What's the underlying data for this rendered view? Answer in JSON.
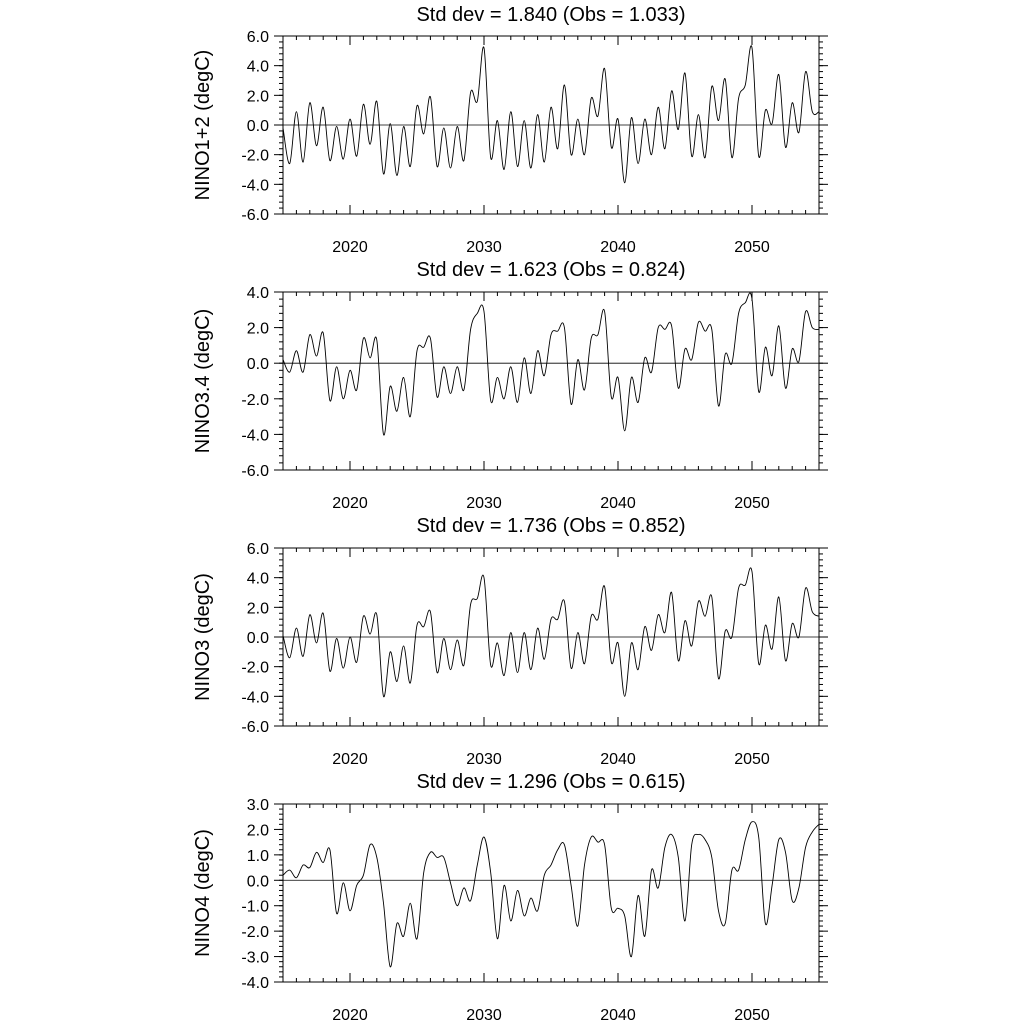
{
  "chart_data": [
    {
      "type": "line",
      "title": "Std dev = 1.840 (Obs = 1.033)",
      "xlabel": "",
      "ylabel": "NINO1+2 (degC)",
      "xlim": [
        2015,
        2055
      ],
      "ylim": [
        -6,
        6
      ],
      "xticks": [
        2020,
        2030,
        2040,
        2050
      ],
      "xtick_labels": [
        "2020",
        "2030",
        "2040",
        "2050"
      ],
      "yticks": [
        -6,
        -4,
        -2,
        0,
        2,
        4,
        6
      ],
      "ytick_labels": [
        "-6.0",
        "-4.0",
        "-2.0",
        "0.0",
        "2.0",
        "4.0",
        "6.0"
      ],
      "reference_line": 0,
      "series": [
        {
          "name": "NINO1+2",
          "x": [
            2015.0,
            2015.5,
            2016.0,
            2016.5,
            2017.0,
            2017.5,
            2018.0,
            2018.5,
            2019.0,
            2019.5,
            2020.0,
            2020.5,
            2021.0,
            2021.5,
            2022.0,
            2022.5,
            2023.0,
            2023.5,
            2024.0,
            2024.5,
            2025.0,
            2025.5,
            2026.0,
            2026.5,
            2027.0,
            2027.5,
            2028.0,
            2028.5,
            2029.0,
            2029.5,
            2030.0,
            2030.5,
            2031.0,
            2031.5,
            2032.0,
            2032.5,
            2033.0,
            2033.5,
            2034.0,
            2034.5,
            2035.0,
            2035.5,
            2036.0,
            2036.5,
            2037.0,
            2037.5,
            2038.0,
            2038.5,
            2039.0,
            2039.5,
            2040.0,
            2040.5,
            2041.0,
            2041.5,
            2042.0,
            2042.5,
            2043.0,
            2043.5,
            2044.0,
            2044.5,
            2045.0,
            2045.5,
            2046.0,
            2046.5,
            2047.0,
            2047.5,
            2048.0,
            2048.5,
            2049.0,
            2049.5,
            2050.0,
            2050.5,
            2051.0,
            2051.5,
            2052.0,
            2052.5,
            2053.0,
            2053.5,
            2054.0,
            2054.5,
            2055.0
          ],
          "values": [
            -0.2,
            -2.6,
            0.9,
            -2.5,
            1.5,
            -1.4,
            1.2,
            -2.4,
            -0.1,
            -2.3,
            0.4,
            -2.1,
            1.4,
            -1.3,
            1.6,
            -3.3,
            0.1,
            -3.4,
            -0.1,
            -2.8,
            1.3,
            -0.6,
            1.9,
            -2.8,
            -0.2,
            -2.9,
            -0.1,
            -2.4,
            2.2,
            1.6,
            5.2,
            -2.2,
            0.3,
            -3.0,
            0.9,
            -2.8,
            0.3,
            -2.9,
            0.7,
            -2.5,
            1.2,
            -1.6,
            2.7,
            -2.0,
            0.4,
            -2.0,
            1.8,
            0.6,
            3.8,
            -1.5,
            0.4,
            -3.9,
            0.5,
            -2.6,
            0.4,
            -2.0,
            1.2,
            -1.6,
            2.3,
            -0.3,
            3.5,
            -2.1,
            0.7,
            -2.2,
            2.6,
            0.3,
            3.1,
            -2.2,
            1.8,
            2.7,
            5.2,
            -2.1,
            1.0,
            0.1,
            3.4,
            -1.5,
            1.5,
            -0.5,
            3.6,
            0.9,
            0.9
          ]
        }
      ]
    },
    {
      "type": "line",
      "title": "Std dev = 1.623 (Obs = 0.824)",
      "xlabel": "",
      "ylabel": "NINO3.4 (degC)",
      "xlim": [
        2015,
        2055
      ],
      "ylim": [
        -6,
        4
      ],
      "xticks": [
        2020,
        2030,
        2040,
        2050
      ],
      "xtick_labels": [
        "2020",
        "2030",
        "2040",
        "2050"
      ],
      "yticks": [
        -6,
        -4,
        -2,
        0,
        2,
        4
      ],
      "ytick_labels": [
        "-6.0",
        "-4.0",
        "-2.0",
        "0.0",
        "2.0",
        "4.0"
      ],
      "reference_line": 0,
      "series": [
        {
          "name": "NINO3.4",
          "x": [
            2015.0,
            2015.5,
            2016.0,
            2016.5,
            2017.0,
            2017.5,
            2018.0,
            2018.5,
            2019.0,
            2019.5,
            2020.0,
            2020.5,
            2021.0,
            2021.5,
            2022.0,
            2022.5,
            2023.0,
            2023.5,
            2024.0,
            2024.5,
            2025.0,
            2025.5,
            2026.0,
            2026.5,
            2027.0,
            2027.5,
            2028.0,
            2028.5,
            2029.0,
            2029.5,
            2030.0,
            2030.5,
            2031.0,
            2031.5,
            2032.0,
            2032.5,
            2033.0,
            2033.5,
            2034.0,
            2034.5,
            2035.0,
            2035.5,
            2036.0,
            2036.5,
            2037.0,
            2037.5,
            2038.0,
            2038.5,
            2039.0,
            2039.5,
            2040.0,
            2040.5,
            2041.0,
            2041.5,
            2042.0,
            2042.5,
            2043.0,
            2043.5,
            2044.0,
            2044.5,
            2045.0,
            2045.5,
            2046.0,
            2046.5,
            2047.0,
            2047.5,
            2048.0,
            2048.5,
            2049.0,
            2049.5,
            2050.0,
            2050.5,
            2051.0,
            2051.5,
            2052.0,
            2052.5,
            2053.0,
            2053.5,
            2054.0,
            2054.5,
            2055.0
          ],
          "values": [
            0.2,
            -0.5,
            0.7,
            -0.5,
            1.6,
            0.4,
            1.7,
            -2.1,
            -0.2,
            -2.0,
            -0.4,
            -1.5,
            1.4,
            0.3,
            1.3,
            -4.0,
            -1.3,
            -2.7,
            -0.8,
            -3.0,
            0.7,
            0.9,
            1.4,
            -1.9,
            -0.2,
            -1.7,
            -0.2,
            -1.5,
            1.9,
            2.8,
            2.9,
            -2.1,
            -0.8,
            -2.0,
            -0.2,
            -2.2,
            0.3,
            -1.7,
            0.7,
            -0.7,
            1.6,
            1.8,
            2.0,
            -2.3,
            0.2,
            -1.5,
            1.4,
            1.6,
            2.9,
            -1.9,
            -0.8,
            -3.8,
            -0.8,
            -2.2,
            0.3,
            -0.5,
            2.0,
            1.9,
            2.1,
            -1.4,
            0.8,
            0.2,
            2.3,
            1.8,
            1.9,
            -2.4,
            0.5,
            0.0,
            2.8,
            3.4,
            3.6,
            -1.6,
            0.9,
            -0.7,
            2.1,
            -1.4,
            0.8,
            0.1,
            2.9,
            2.0,
            1.9
          ]
        }
      ]
    },
    {
      "type": "line",
      "title": "Std dev = 1.736 (Obs = 0.852)",
      "xlabel": "",
      "ylabel": "NINO3 (degC)",
      "xlim": [
        2015,
        2055
      ],
      "ylim": [
        -6,
        6
      ],
      "xticks": [
        2020,
        2030,
        2040,
        2050
      ],
      "xtick_labels": [
        "2020",
        "2030",
        "2040",
        "2050"
      ],
      "yticks": [
        -6,
        -4,
        -2,
        0,
        2,
        4,
        6
      ],
      "ytick_labels": [
        "-6.0",
        "-4.0",
        "-2.0",
        "0.0",
        "2.0",
        "4.0",
        "6.0"
      ],
      "reference_line": 0,
      "series": [
        {
          "name": "NINO3",
          "x": [
            2015.0,
            2015.5,
            2016.0,
            2016.5,
            2017.0,
            2017.5,
            2018.0,
            2018.5,
            2019.0,
            2019.5,
            2020.0,
            2020.5,
            2021.0,
            2021.5,
            2022.0,
            2022.5,
            2023.0,
            2023.5,
            2024.0,
            2024.5,
            2025.0,
            2025.5,
            2026.0,
            2026.5,
            2027.0,
            2027.5,
            2028.0,
            2028.5,
            2029.0,
            2029.5,
            2030.0,
            2030.5,
            2031.0,
            2031.5,
            2032.0,
            2032.5,
            2033.0,
            2033.5,
            2034.0,
            2034.5,
            2035.0,
            2035.5,
            2036.0,
            2036.5,
            2037.0,
            2037.5,
            2038.0,
            2038.5,
            2039.0,
            2039.5,
            2040.0,
            2040.5,
            2041.0,
            2041.5,
            2042.0,
            2042.5,
            2043.0,
            2043.5,
            2044.0,
            2044.5,
            2045.0,
            2045.5,
            2046.0,
            2046.5,
            2047.0,
            2047.5,
            2048.0,
            2048.5,
            2049.0,
            2049.5,
            2050.0,
            2050.5,
            2051.0,
            2051.5,
            2052.0,
            2052.5,
            2053.0,
            2053.5,
            2054.0,
            2054.5,
            2055.0
          ],
          "values": [
            0.1,
            -1.4,
            0.6,
            -1.3,
            1.5,
            -0.4,
            1.6,
            -2.3,
            -0.1,
            -2.1,
            0.0,
            -1.7,
            1.4,
            0.2,
            1.5,
            -4.0,
            -1.0,
            -3.0,
            -0.6,
            -3.1,
            0.8,
            0.7,
            1.7,
            -2.4,
            -0.1,
            -2.2,
            -0.2,
            -1.9,
            2.2,
            2.6,
            4.0,
            -1.9,
            -0.4,
            -2.6,
            0.3,
            -2.4,
            0.3,
            -2.2,
            0.6,
            -1.5,
            1.2,
            1.2,
            2.4,
            -2.1,
            0.3,
            -1.8,
            1.4,
            1.2,
            3.4,
            -1.7,
            -0.4,
            -4.0,
            -0.4,
            -2.2,
            0.7,
            -0.9,
            1.5,
            0.3,
            3.0,
            -1.6,
            1.1,
            -0.6,
            2.4,
            1.4,
            2.7,
            -2.8,
            0.4,
            0.0,
            3.3,
            3.5,
            4.4,
            -1.8,
            0.8,
            -0.8,
            2.7,
            -1.6,
            0.9,
            0.0,
            3.3,
            1.7,
            1.4
          ]
        }
      ]
    },
    {
      "type": "line",
      "title": "Std dev = 1.296 (Obs = 0.615)",
      "xlabel": "",
      "ylabel": "NINO4 (degC)",
      "xlim": [
        2015,
        2055
      ],
      "ylim": [
        -4,
        3
      ],
      "xticks": [
        2020,
        2030,
        2040,
        2050
      ],
      "xtick_labels": [
        "2020",
        "2030",
        "2040",
        "2050"
      ],
      "yticks": [
        -4,
        -3,
        -2,
        -1,
        0,
        1,
        2,
        3
      ],
      "ytick_labels": [
        "-4.0",
        "-3.0",
        "-2.0",
        "-1.0",
        "0.0",
        "1.0",
        "2.0",
        "3.0"
      ],
      "reference_line": 0,
      "series": [
        {
          "name": "NINO4",
          "x": [
            2015.0,
            2015.5,
            2016.0,
            2016.5,
            2017.0,
            2017.5,
            2018.0,
            2018.5,
            2019.0,
            2019.5,
            2020.0,
            2020.5,
            2021.0,
            2021.5,
            2022.0,
            2022.5,
            2023.0,
            2023.5,
            2024.0,
            2024.5,
            2025.0,
            2025.5,
            2026.0,
            2026.5,
            2027.0,
            2027.5,
            2028.0,
            2028.5,
            2029.0,
            2029.5,
            2030.0,
            2030.5,
            2031.0,
            2031.5,
            2032.0,
            2032.5,
            2033.0,
            2033.5,
            2034.0,
            2034.5,
            2035.0,
            2035.5,
            2036.0,
            2036.5,
            2037.0,
            2037.5,
            2038.0,
            2038.5,
            2039.0,
            2039.5,
            2040.0,
            2040.5,
            2041.0,
            2041.5,
            2042.0,
            2042.5,
            2043.0,
            2043.5,
            2044.0,
            2044.5,
            2045.0,
            2045.5,
            2046.0,
            2046.5,
            2047.0,
            2047.5,
            2048.0,
            2048.5,
            2049.0,
            2049.5,
            2050.0,
            2050.5,
            2051.0,
            2051.5,
            2052.0,
            2052.5,
            2053.0,
            2053.5,
            2054.0,
            2054.5,
            2055.0
          ],
          "values": [
            0.2,
            0.4,
            0.1,
            0.6,
            0.5,
            1.1,
            0.7,
            1.2,
            -1.3,
            -0.1,
            -1.2,
            -0.2,
            0.2,
            1.4,
            0.9,
            -0.9,
            -3.4,
            -1.7,
            -2.2,
            -0.9,
            -2.3,
            0.3,
            1.1,
            0.9,
            0.9,
            -0.1,
            -1.0,
            -0.3,
            -0.8,
            0.6,
            1.7,
            0.3,
            -2.3,
            -0.2,
            -1.6,
            -0.4,
            -1.4,
            -0.7,
            -1.2,
            0.2,
            0.6,
            1.2,
            1.4,
            -0.2,
            -1.8,
            0.6,
            1.7,
            1.5,
            1.4,
            -1.1,
            -1.1,
            -1.4,
            -3.0,
            -0.6,
            -2.2,
            0.4,
            -0.3,
            1.3,
            1.8,
            0.9,
            -1.6,
            1.4,
            1.8,
            1.6,
            0.9,
            -1.2,
            -1.7,
            0.4,
            0.4,
            1.6,
            2.3,
            1.7,
            -1.7,
            -0.2,
            1.6,
            1.1,
            -0.8,
            -0.3,
            1.3,
            1.9,
            2.2
          ]
        }
      ]
    }
  ]
}
